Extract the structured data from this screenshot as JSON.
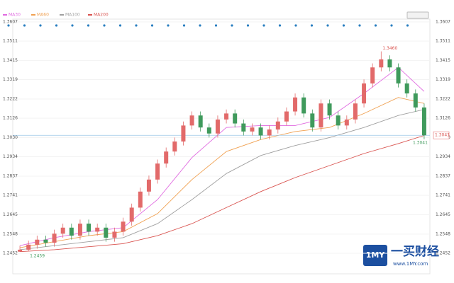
{
  "chart_data": {
    "type": "candlestick",
    "ylim": [
      1.2452,
      1.3607
    ],
    "yticks": [
      1.3607,
      1.3511,
      1.3415,
      1.3319,
      1.3222,
      1.3126,
      {
        "value": 1.303,
        "label": "1.3030"
      },
      1.2934,
      1.2837,
      1.2741,
      1.2645,
      1.2548,
      1.2452
    ],
    "up_color": "#e26a6a",
    "down_color": "#3f9a5c",
    "open": [
      1.246,
      1.247,
      1.2495,
      1.252,
      1.2505,
      1.255,
      1.258,
      1.254,
      1.26,
      1.256,
      1.258,
      1.253,
      1.256,
      1.261,
      1.268,
      1.276,
      1.282,
      1.29,
      1.296,
      1.301,
      1.309,
      1.314,
      1.308,
      1.305,
      1.312,
      1.315,
      1.31,
      1.306,
      1.308,
      1.304,
      1.307,
      1.311,
      1.316,
      1.323,
      1.315,
      1.308,
      1.32,
      1.314,
      1.309,
      1.312,
      1.32,
      1.33,
      1.338,
      1.342,
      1.338,
      1.33,
      1.325,
      1.318
    ],
    "high": [
      1.249,
      1.2515,
      1.254,
      1.254,
      1.257,
      1.26,
      1.26,
      1.262,
      1.262,
      1.26,
      1.26,
      1.258,
      1.263,
      1.27,
      1.278,
      1.284,
      1.292,
      1.298,
      1.303,
      1.311,
      1.316,
      1.316,
      1.31,
      1.314,
      1.317,
      1.317,
      1.312,
      1.31,
      1.31,
      1.309,
      1.313,
      1.318,
      1.325,
      1.325,
      1.317,
      1.322,
      1.322,
      1.316,
      1.314,
      1.322,
      1.332,
      1.34,
      1.346,
      1.344,
      1.34,
      1.332,
      1.327,
      1.32
    ],
    "low": [
      1.2459,
      1.2462,
      1.2475,
      1.2485,
      1.2485,
      1.253,
      1.252,
      1.252,
      1.254,
      1.254,
      1.251,
      1.251,
      1.254,
      1.259,
      1.266,
      1.274,
      1.28,
      1.288,
      1.294,
      1.299,
      1.307,
      1.306,
      1.303,
      1.303,
      1.31,
      1.308,
      1.304,
      1.304,
      1.302,
      1.302,
      1.305,
      1.309,
      1.314,
      1.313,
      1.306,
      1.306,
      1.312,
      1.307,
      1.307,
      1.31,
      1.318,
      1.328,
      1.336,
      1.336,
      1.328,
      1.323,
      1.316,
      1.3021
    ],
    "close": [
      1.247,
      1.2495,
      1.252,
      1.2505,
      1.255,
      1.258,
      1.254,
      1.26,
      1.256,
      1.258,
      1.253,
      1.256,
      1.261,
      1.268,
      1.276,
      1.282,
      1.29,
      1.296,
      1.301,
      1.309,
      1.314,
      1.308,
      1.305,
      1.312,
      1.315,
      1.31,
      1.306,
      1.308,
      1.304,
      1.307,
      1.311,
      1.316,
      1.323,
      1.315,
      1.308,
      1.32,
      1.314,
      1.309,
      1.312,
      1.32,
      1.33,
      1.338,
      1.342,
      1.338,
      1.33,
      1.325,
      1.318,
      1.3041
    ],
    "ma": [
      {
        "name": "MA30",
        "color": "#e06ae0",
        "x": [
          0,
          4,
          8,
          12,
          16,
          20,
          24,
          28,
          32,
          36,
          40,
          44,
          47
        ],
        "values": [
          1.249,
          1.253,
          1.256,
          1.258,
          1.272,
          1.293,
          1.308,
          1.309,
          1.309,
          1.313,
          1.325,
          1.338,
          1.326
        ]
      },
      {
        "name": "MA60",
        "color": "#f0a050",
        "x": [
          0,
          4,
          8,
          12,
          16,
          20,
          24,
          28,
          32,
          36,
          40,
          44,
          47
        ],
        "values": [
          1.248,
          1.251,
          1.254,
          1.256,
          1.265,
          1.282,
          1.296,
          1.302,
          1.306,
          1.308,
          1.315,
          1.323,
          1.32
        ]
      },
      {
        "name": "MA100",
        "color": "#a0a0a0",
        "x": [
          0,
          4,
          8,
          12,
          16,
          20,
          24,
          28,
          32,
          36,
          40,
          44,
          47
        ],
        "values": [
          1.247,
          1.249,
          1.251,
          1.253,
          1.26,
          1.272,
          1.285,
          1.294,
          1.299,
          1.303,
          1.308,
          1.314,
          1.317
        ]
      },
      {
        "name": "MA200",
        "color": "#d9534f",
        "x": [
          0,
          4,
          8,
          12,
          16,
          20,
          24,
          28,
          32,
          36,
          40,
          44,
          47
        ],
        "values": [
          1.246,
          1.247,
          1.2485,
          1.25,
          1.254,
          1.26,
          1.268,
          1.276,
          1.283,
          1.289,
          1.295,
          1.3,
          1.304
        ]
      }
    ],
    "annotations": [
      "1.3460",
      "1.2459",
      "1.3041"
    ],
    "last_price_label": "1.3041"
  },
  "watermark": {
    "logo": "1MY",
    "name": "一买财经",
    "url": "www.1MY.com"
  }
}
